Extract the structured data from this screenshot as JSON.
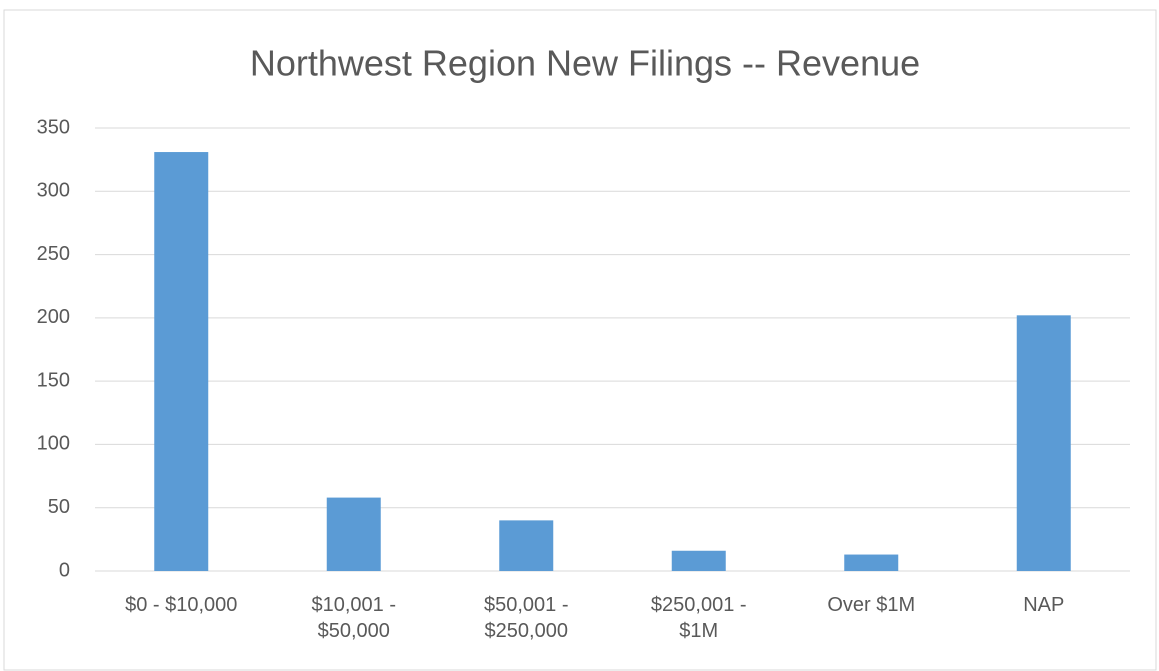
{
  "chart_data": {
    "type": "bar",
    "title": "Northwest Region New Filings -- Revenue",
    "categories": [
      "$0 - $10,000",
      "$10,001 -\n$50,000",
      "$50,001 -\n$250,000",
      "$250,001 -\n$1M",
      "Over $1M",
      "NAP"
    ],
    "values": [
      331,
      58,
      40,
      16,
      13,
      202
    ],
    "color": "#5b9bd5",
    "ylim": [
      0,
      350
    ],
    "yticks": [
      0,
      50,
      100,
      150,
      200,
      250,
      300,
      350
    ],
    "grid": true
  }
}
